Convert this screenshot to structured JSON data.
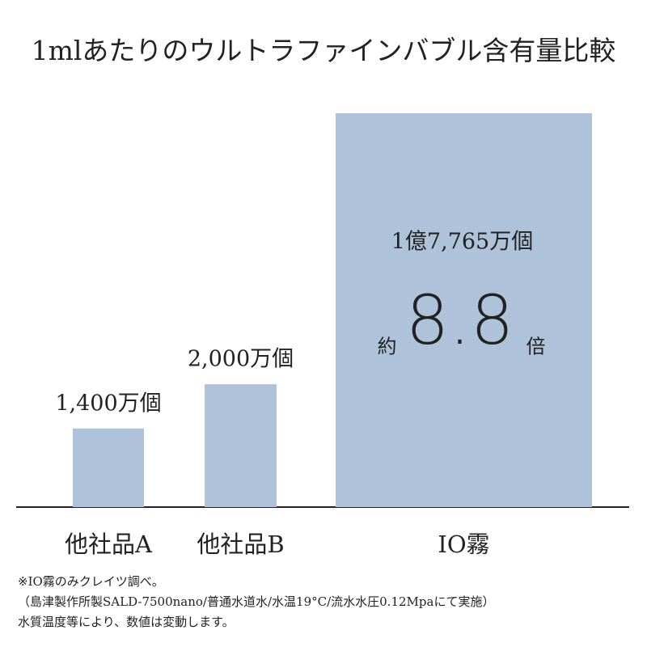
{
  "chart_data": {
    "type": "bar",
    "title": "1mlあたりのウルトラファインバブル含有量比較",
    "categories": [
      "他社品A",
      "他社品B",
      "IO霧"
    ],
    "values": [
      1400,
      2000,
      17765
    ],
    "value_labels": [
      "1,400万個",
      "2,000万個",
      "1億7,765万個"
    ],
    "color": "#aec3d9",
    "log_scale": true,
    "ylim": [
      743,
      17765
    ],
    "annotation": {
      "prefix": "約",
      "value": 8.8,
      "suffix": "倍"
    },
    "footnotes": [
      "※IO霧のみクレイツ調べ。",
      "（島津製作所製SALD-7500nano/普通水道水/水温19°C/流水水圧0.12Mpaにて実施）",
      "水質温度等により、数値は変動します。"
    ]
  }
}
